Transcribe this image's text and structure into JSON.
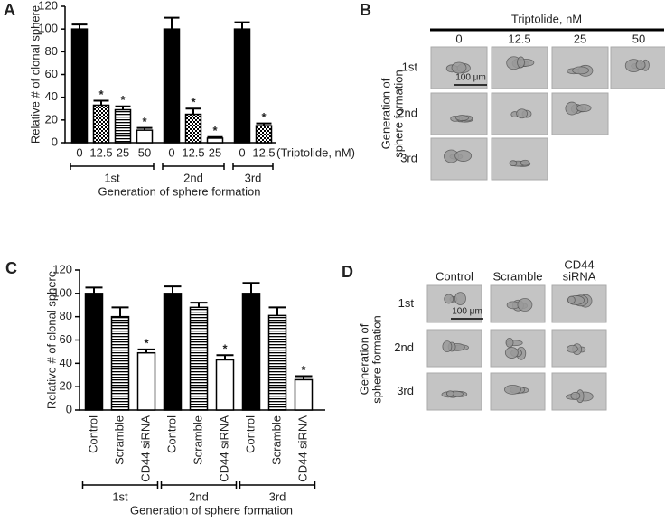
{
  "panel_labels": [
    "A",
    "B",
    "C",
    "D"
  ],
  "chart_data": [
    {
      "type": "bar",
      "y_label": "Relative # of clonal sphere",
      "categories": [
        "0",
        "12.5",
        "25",
        "50",
        "0",
        "12.5",
        "25",
        "0",
        "12.5"
      ],
      "x_unit_label": "(Triptolide, nM)",
      "values": [
        100,
        33,
        29,
        11,
        100,
        25,
        4,
        100,
        15
      ],
      "errors": [
        4,
        4,
        3,
        2,
        10,
        5,
        1,
        6,
        2
      ],
      "bar_styles": [
        "solid",
        "checker",
        "hstripe",
        "open",
        "solid",
        "checker",
        "open",
        "solid",
        "checker"
      ],
      "significance": [
        null,
        "*",
        "*",
        "*",
        null,
        "*",
        "*",
        null,
        "*"
      ],
      "groups": [
        {
          "label": "1st",
          "count": 4
        },
        {
          "label": "2nd",
          "count": 3
        },
        {
          "label": "3rd",
          "count": 2
        }
      ],
      "x_label": "Generation of sphere formation",
      "ylim": [
        0,
        120
      ],
      "yticks": [
        0,
        20,
        40,
        60,
        80,
        100,
        120
      ],
      "rotate_labels": false
    },
    {
      "type": "bar",
      "y_label": "Relative # of clonal sphere",
      "categories": [
        "Control",
        "Scramble",
        "CD44 siRNA",
        "Control",
        "Scramble",
        "CD44 siRNA",
        "Control",
        "Scramble",
        "CD44 siRNA"
      ],
      "values": [
        100,
        80,
        49,
        100,
        88,
        43,
        100,
        81,
        26
      ],
      "errors": [
        5,
        8,
        3,
        6,
        4,
        4,
        9,
        7,
        3
      ],
      "bar_styles": [
        "solid",
        "hstripe",
        "open",
        "solid",
        "hstripe",
        "open",
        "solid",
        "hstripe",
        "open"
      ],
      "significance": [
        null,
        null,
        "*",
        null,
        null,
        "*",
        null,
        null,
        "*"
      ],
      "groups": [
        {
          "label": "1st",
          "count": 3
        },
        {
          "label": "2nd",
          "count": 3
        },
        {
          "label": "3rd",
          "count": 3
        }
      ],
      "x_label": "Generation of sphere formation",
      "ylim": [
        0,
        120
      ],
      "yticks": [
        0,
        20,
        40,
        60,
        80,
        100,
        120
      ],
      "rotate_labels": true
    }
  ],
  "image_grids": [
    {
      "title": "Triptolide, nM",
      "columns": [
        "0",
        "12.5",
        "25",
        "50"
      ],
      "rows": [
        "1st",
        "2nd",
        "3rd"
      ],
      "row_axis_label": [
        "Generation of",
        "sphere formation"
      ],
      "images_per_row": [
        4,
        3,
        2
      ],
      "scale_bar": "100 μm"
    },
    {
      "columns": [
        [
          "Control"
        ],
        [
          "Scramble"
        ],
        [
          "CD44",
          "siRNA"
        ]
      ],
      "rows": [
        "1st",
        "2nd",
        "3rd"
      ],
      "row_axis_label": [
        "Generation of",
        "sphere formation"
      ],
      "images_per_row": [
        3,
        3,
        3
      ],
      "scale_bar": "100 μm"
    }
  ]
}
